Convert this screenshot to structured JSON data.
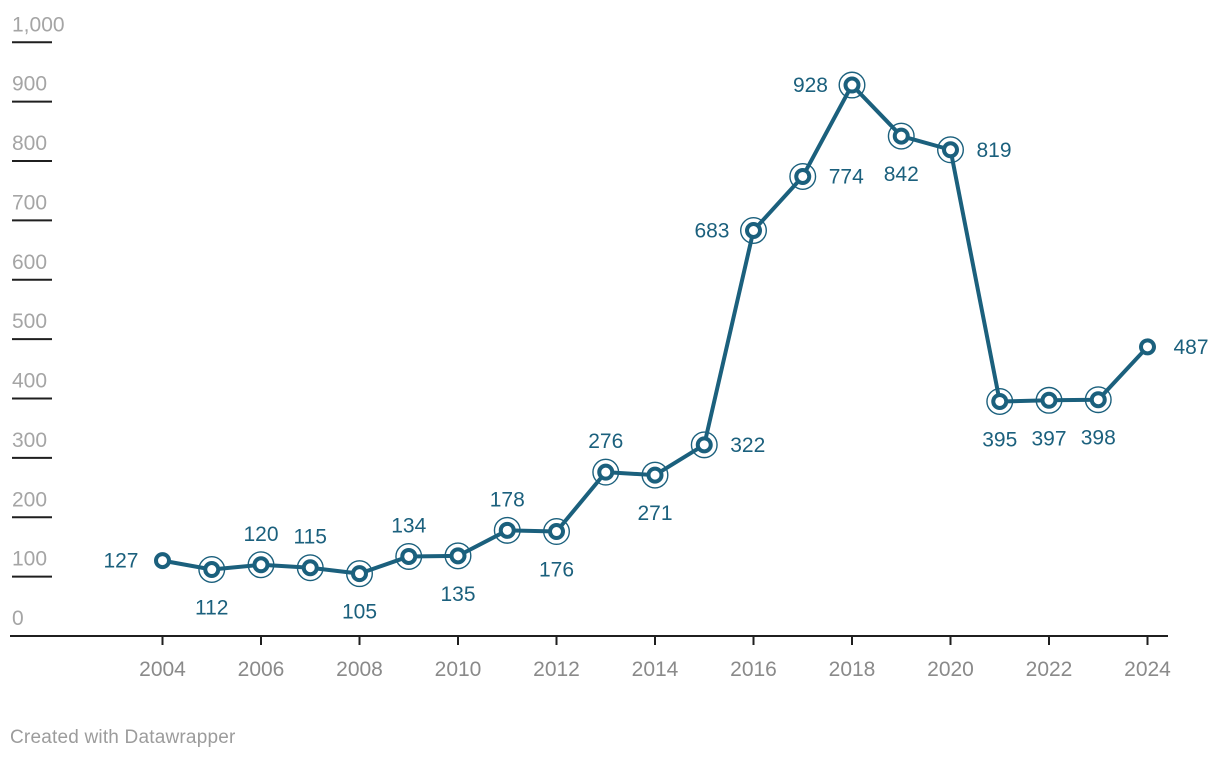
{
  "chart_data": {
    "type": "line",
    "x": [
      2004,
      2005,
      2006,
      2007,
      2008,
      2009,
      2010,
      2011,
      2012,
      2013,
      2014,
      2015,
      2016,
      2017,
      2018,
      2019,
      2020,
      2021,
      2022,
      2023,
      2024
    ],
    "values": [
      127,
      112,
      120,
      115,
      105,
      134,
      135,
      178,
      176,
      276,
      271,
      322,
      683,
      774,
      928,
      842,
      819,
      395,
      397,
      398,
      487
    ],
    "value_labels": [
      "127",
      "112",
      "120",
      "115",
      "105",
      "134",
      "135",
      "178",
      "176",
      "276",
      "271",
      "322",
      "683",
      "774",
      "928",
      "842",
      "819",
      "395",
      "397",
      "398",
      "487"
    ],
    "label_positions": [
      "left",
      "below",
      "above",
      "above",
      "below",
      "above",
      "below",
      "above",
      "below",
      "above",
      "below",
      "right",
      "left",
      "right",
      "left",
      "below",
      "right",
      "below",
      "below",
      "below",
      "right"
    ],
    "point_halo": [
      false,
      true,
      true,
      true,
      true,
      true,
      true,
      true,
      true,
      true,
      true,
      true,
      true,
      true,
      true,
      true,
      true,
      true,
      true,
      true,
      false
    ],
    "title": "",
    "xlabel": "",
    "ylabel": "",
    "ylim": [
      0,
      1000
    ],
    "y_ticks": [
      0,
      100,
      200,
      300,
      400,
      500,
      600,
      700,
      800,
      900,
      1000
    ],
    "y_tick_labels": [
      "0",
      "100",
      "200",
      "300",
      "400",
      "500",
      "600",
      "700",
      "800",
      "900",
      "1,000"
    ],
    "x_ticks": [
      2004,
      2006,
      2008,
      2010,
      2012,
      2014,
      2016,
      2018,
      2020,
      2022,
      2024
    ],
    "x_tick_labels": [
      "2004",
      "2006",
      "2008",
      "2010",
      "2012",
      "2014",
      "2016",
      "2018",
      "2020",
      "2022",
      "2024"
    ],
    "grid": "off",
    "legend": "none"
  },
  "colors": {
    "series": "#1b607d",
    "point_fill": "#ffffff",
    "axis_line": "#1f1f1f",
    "y_tick_label": "#a5a5a5",
    "x_tick_label": "#8a8a8a",
    "value_label": "#1b607d",
    "footer": "#9c9c9c",
    "background": "#ffffff"
  },
  "footer": {
    "credit": "Created with Datawrapper"
  }
}
